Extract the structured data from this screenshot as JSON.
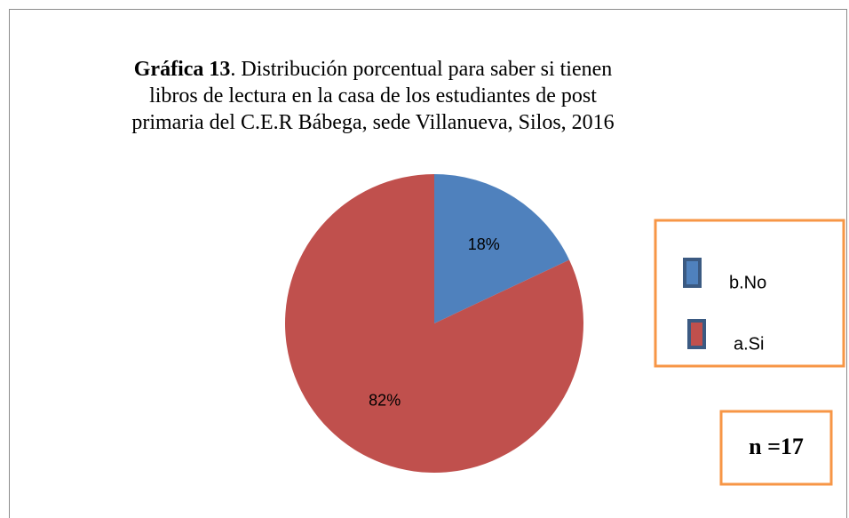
{
  "chart_data": {
    "type": "pie",
    "title_label": "Gráfica 13",
    "title": ". Distribución porcentual para saber si tienen libros de lectura en la casa de los estudiantes de post primaria del C.E.R Bábega, sede Villanueva, Silos, 2016",
    "categories": [
      "b.No",
      "a.Si"
    ],
    "values": [
      18,
      82
    ],
    "value_labels": [
      "18%",
      "82%"
    ],
    "colors": [
      "#4f81bd",
      "#c0504d"
    ],
    "annotation": "n =17"
  }
}
